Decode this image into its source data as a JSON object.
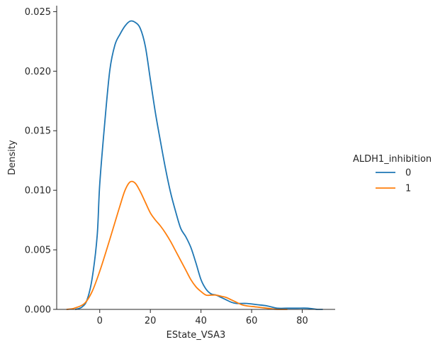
{
  "chart_data": {
    "type": "line",
    "xlabel": "EState_VSA3",
    "ylabel": "Density",
    "xlim": [
      -17,
      93
    ],
    "ylim": [
      0,
      0.0255
    ],
    "xticks": [
      0,
      20,
      40,
      60,
      80
    ],
    "yticks": [
      0.0,
      0.005,
      0.01,
      0.015,
      0.02,
      0.025
    ],
    "ytick_labels": [
      "0.000",
      "0.005",
      "0.010",
      "0.015",
      "0.020",
      "0.025"
    ],
    "grid": false,
    "legend": {
      "title": "ALDH1_inhibition",
      "placement": "right"
    },
    "series": [
      {
        "name": "0",
        "color": "#1f77b4",
        "points": [
          [
            -9.5,
            0.0
          ],
          [
            -7,
            0.0002
          ],
          [
            -5,
            0.0008
          ],
          [
            -3,
            0.0026
          ],
          [
            -1,
            0.0062
          ],
          [
            0,
            0.0105
          ],
          [
            2,
            0.0157
          ],
          [
            4,
            0.0201
          ],
          [
            6,
            0.0222
          ],
          [
            8,
            0.0231
          ],
          [
            10,
            0.0238
          ],
          [
            12,
            0.0242
          ],
          [
            14,
            0.0241
          ],
          [
            16,
            0.0236
          ],
          [
            18,
            0.0221
          ],
          [
            20,
            0.0193
          ],
          [
            22,
            0.0165
          ],
          [
            24,
            0.0141
          ],
          [
            26,
            0.0118
          ],
          [
            28,
            0.0098
          ],
          [
            30,
            0.0082
          ],
          [
            32,
            0.0068
          ],
          [
            34,
            0.0061
          ],
          [
            36,
            0.0052
          ],
          [
            38,
            0.0039
          ],
          [
            40,
            0.0025
          ],
          [
            42,
            0.0017
          ],
          [
            44,
            0.0013
          ],
          [
            46,
            0.0012
          ],
          [
            48,
            0.001
          ],
          [
            50,
            0.0008
          ],
          [
            52,
            0.0006
          ],
          [
            54,
            0.0005
          ],
          [
            58,
            0.0005
          ],
          [
            62,
            0.0004
          ],
          [
            66,
            0.0003
          ],
          [
            70,
            0.0001
          ],
          [
            74,
            0.0001
          ],
          [
            78,
            0.0001
          ],
          [
            82,
            0.0001
          ],
          [
            86,
            0.0
          ],
          [
            88,
            0.0
          ]
        ]
      },
      {
        "name": "1",
        "color": "#ff7f0e",
        "points": [
          [
            -13,
            0.0
          ],
          [
            -10,
            0.0001
          ],
          [
            -6,
            0.0005
          ],
          [
            -3,
            0.0015
          ],
          [
            0,
            0.0032
          ],
          [
            3,
            0.0052
          ],
          [
            6,
            0.0073
          ],
          [
            8,
            0.0087
          ],
          [
            10,
            0.01
          ],
          [
            12,
            0.0107
          ],
          [
            14,
            0.0106
          ],
          [
            16,
            0.0099
          ],
          [
            18,
            0.009
          ],
          [
            20,
            0.0081
          ],
          [
            22,
            0.0075
          ],
          [
            24,
            0.007
          ],
          [
            26,
            0.0064
          ],
          [
            28,
            0.0057
          ],
          [
            30,
            0.0049
          ],
          [
            32,
            0.0041
          ],
          [
            34,
            0.0033
          ],
          [
            36,
            0.0025
          ],
          [
            38,
            0.0019
          ],
          [
            40,
            0.0015
          ],
          [
            42,
            0.0012
          ],
          [
            44,
            0.0012
          ],
          [
            46,
            0.0012
          ],
          [
            48,
            0.0011
          ],
          [
            50,
            0.001
          ],
          [
            52,
            0.0008
          ],
          [
            54,
            0.0006
          ],
          [
            56,
            0.0004
          ],
          [
            58,
            0.0003
          ],
          [
            62,
            0.0002
          ],
          [
            66,
            0.0001
          ],
          [
            70,
            0.0
          ],
          [
            74,
            0.0
          ]
        ]
      }
    ]
  }
}
